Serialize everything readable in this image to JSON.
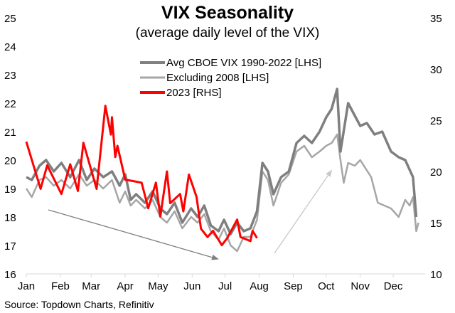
{
  "chart_data": {
    "type": "line",
    "title": "VIX Seasonality",
    "subtitle": "(average daily level of the VIX)",
    "source": "Source: Topdown Charts, Refinitiv",
    "x_ticks": [
      "Jan",
      "Feb",
      "Mar",
      "Apr",
      "May",
      "Jun",
      "Jul",
      "Aug",
      "Sep",
      "Oct",
      "Nov",
      "Dec"
    ],
    "y_left": {
      "range": [
        16,
        25
      ],
      "ticks": [
        "16",
        "17",
        "18",
        "19",
        "20",
        "21",
        "22",
        "23",
        "24",
        "25"
      ]
    },
    "y_right": {
      "range": [
        10,
        35
      ],
      "ticks": [
        "10",
        "15",
        "20",
        "25",
        "30",
        "35"
      ]
    },
    "grid": false,
    "legend_position": "top-center",
    "series": [
      {
        "name": "Avg CBOE VIX 1990-2022 [LHS]",
        "axis": "left",
        "color": "#7f7f7f",
        "points": [
          [
            "01-01",
            19.4
          ],
          [
            "01-06",
            19.3
          ],
          [
            "01-13",
            19.8
          ],
          [
            "01-19",
            20.0
          ],
          [
            "01-26",
            19.6
          ],
          [
            "02-02",
            19.9
          ],
          [
            "02-10",
            19.4
          ],
          [
            "02-18",
            20.0
          ],
          [
            "02-25",
            19.3
          ],
          [
            "03-04",
            19.7
          ],
          [
            "03-12",
            19.4
          ],
          [
            "03-20",
            19.6
          ],
          [
            "03-27",
            19.1
          ],
          [
            "04-01",
            19.5
          ],
          [
            "04-06",
            18.6
          ],
          [
            "04-11",
            18.8
          ],
          [
            "04-19",
            18.5
          ],
          [
            "04-26",
            18.9
          ],
          [
            "05-03",
            18.3
          ],
          [
            "05-09",
            18.1
          ],
          [
            "05-16",
            18.5
          ],
          [
            "05-23",
            17.8
          ],
          [
            "05-31",
            18.3
          ],
          [
            "06-06",
            18.0
          ],
          [
            "06-12",
            18.4
          ],
          [
            "06-18",
            17.7
          ],
          [
            "06-25",
            17.5
          ],
          [
            "06-30",
            17.9
          ],
          [
            "07-06",
            17.4
          ],
          [
            "07-12",
            17.8
          ],
          [
            "07-18",
            17.5
          ],
          [
            "07-24",
            17.6
          ],
          [
            "07-30",
            18.2
          ],
          [
            "08-04",
            19.9
          ],
          [
            "08-09",
            19.6
          ],
          [
            "08-14",
            18.8
          ],
          [
            "08-21",
            19.4
          ],
          [
            "08-28",
            19.6
          ],
          [
            "09-04",
            20.6
          ],
          [
            "09-11",
            20.85
          ],
          [
            "09-18",
            20.6
          ],
          [
            "09-25",
            21.0
          ],
          [
            "10-01",
            21.5
          ],
          [
            "10-06",
            21.8
          ],
          [
            "10-11",
            22.5
          ],
          [
            "10-14",
            20.3
          ],
          [
            "10-21",
            22.0
          ],
          [
            "11-01",
            21.2
          ],
          [
            "11-07",
            21.3
          ],
          [
            "11-14",
            20.9
          ],
          [
            "11-21",
            21.0
          ],
          [
            "11-29",
            20.3
          ],
          [
            "12-06",
            20.1
          ],
          [
            "12-12",
            20.0
          ],
          [
            "12-19",
            19.4
          ],
          [
            "12-22",
            18.0
          ]
        ]
      },
      {
        "name": "Excluding 2008 [LHS]",
        "axis": "left",
        "color": "#a6a6a6",
        "points": [
          [
            "01-01",
            19.0
          ],
          [
            "01-06",
            18.7
          ],
          [
            "01-13",
            19.3
          ],
          [
            "01-19",
            19.4
          ],
          [
            "01-26",
            19.1
          ],
          [
            "02-02",
            19.3
          ],
          [
            "02-10",
            19.0
          ],
          [
            "02-18",
            19.5
          ],
          [
            "02-25",
            19.1
          ],
          [
            "03-04",
            19.3
          ],
          [
            "03-12",
            19.0
          ],
          [
            "03-20",
            19.3
          ],
          [
            "03-27",
            18.5
          ],
          [
            "04-01",
            18.9
          ],
          [
            "04-06",
            18.4
          ],
          [
            "04-11",
            18.6
          ],
          [
            "04-19",
            18.3
          ],
          [
            "04-26",
            18.6
          ],
          [
            "05-03",
            18.0
          ],
          [
            "05-09",
            17.8
          ],
          [
            "05-16",
            18.2
          ],
          [
            "05-23",
            17.6
          ],
          [
            "05-31",
            18.0
          ],
          [
            "06-06",
            17.8
          ],
          [
            "06-12",
            18.1
          ],
          [
            "06-18",
            17.5
          ],
          [
            "06-25",
            17.2
          ],
          [
            "06-30",
            17.6
          ],
          [
            "07-06",
            17.0
          ],
          [
            "07-12",
            16.8
          ],
          [
            "07-18",
            17.3
          ],
          [
            "07-24",
            17.3
          ],
          [
            "07-30",
            17.9
          ],
          [
            "08-04",
            19.6
          ],
          [
            "08-09",
            19.3
          ],
          [
            "08-14",
            18.4
          ],
          [
            "08-21",
            19.2
          ],
          [
            "08-28",
            19.5
          ],
          [
            "09-04",
            20.3
          ],
          [
            "09-11",
            20.5
          ],
          [
            "09-18",
            20.1
          ],
          [
            "09-25",
            20.3
          ],
          [
            "10-01",
            20.5
          ],
          [
            "10-06",
            20.6
          ],
          [
            "10-11",
            20.9
          ],
          [
            "10-14",
            20.0
          ],
          [
            "10-17",
            19.2
          ],
          [
            "10-21",
            19.9
          ],
          [
            "10-27",
            19.8
          ],
          [
            "11-01",
            20.0
          ],
          [
            "11-11",
            19.4
          ],
          [
            "11-17",
            18.5
          ],
          [
            "11-29",
            18.3
          ],
          [
            "12-06",
            18.0
          ],
          [
            "12-12",
            18.6
          ],
          [
            "12-16",
            18.4
          ],
          [
            "12-19",
            18.7
          ],
          [
            "12-22",
            17.5
          ],
          [
            "12-24",
            17.8
          ]
        ]
      },
      {
        "name": "2023 [RHS]",
        "axis": "right",
        "color": "#ff0000",
        "points": [
          [
            "01-01",
            22.9
          ],
          [
            "01-14",
            18.3
          ],
          [
            "01-20",
            20.6
          ],
          [
            "02-02",
            17.8
          ],
          [
            "02-10",
            20.7
          ],
          [
            "02-17",
            18.1
          ],
          [
            "02-22",
            22.8
          ],
          [
            "03-06",
            18.3
          ],
          [
            "03-14",
            26.4
          ],
          [
            "03-19",
            23.6
          ],
          [
            "03-20",
            25.3
          ],
          [
            "03-23",
            21.4
          ],
          [
            "03-25",
            22.5
          ],
          [
            "04-01",
            19.2
          ],
          [
            "04-16",
            18.9
          ],
          [
            "04-22",
            16.4
          ],
          [
            "04-29",
            18.9
          ],
          [
            "05-03",
            15.6
          ],
          [
            "05-09",
            20.0
          ],
          [
            "05-12",
            16.9
          ],
          [
            "05-21",
            17.8
          ],
          [
            "05-24",
            16.1
          ],
          [
            "05-29",
            19.7
          ],
          [
            "06-05",
            17.5
          ],
          [
            "06-09",
            14.4
          ],
          [
            "06-15",
            13.6
          ],
          [
            "06-20",
            14.2
          ],
          [
            "06-28",
            12.8
          ],
          [
            "07-03",
            13.5
          ],
          [
            "07-12",
            15.3
          ],
          [
            "07-15",
            13.6
          ],
          [
            "07-24",
            13.2
          ],
          [
            "07-26",
            14.2
          ],
          [
            "07-30",
            13.5
          ]
        ]
      }
    ]
  }
}
